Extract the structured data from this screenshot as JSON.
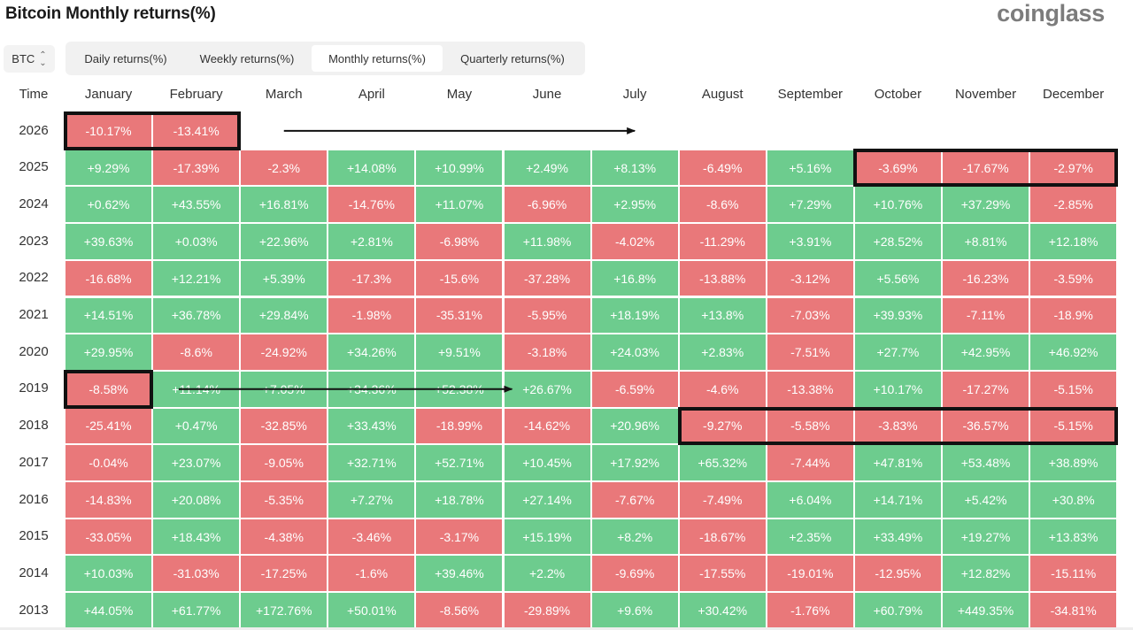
{
  "page": {
    "title": "Bitcoin Monthly returns(%)",
    "brand": "coinglass"
  },
  "coin_select": {
    "value": "BTC"
  },
  "tabs": [
    {
      "label": "Daily returns(%)",
      "active": false
    },
    {
      "label": "Weekly returns(%)",
      "active": false
    },
    {
      "label": "Monthly returns(%)",
      "active": true
    },
    {
      "label": "Quarterly returns(%)",
      "active": false
    }
  ],
  "colors": {
    "positive": "#6dcc8e",
    "negative": "#e9787a"
  },
  "chart_data": {
    "type": "heatmap",
    "title": "Bitcoin Monthly returns(%)",
    "row_header": "Time",
    "columns": [
      "January",
      "February",
      "March",
      "April",
      "May",
      "June",
      "July",
      "August",
      "September",
      "October",
      "November",
      "December"
    ],
    "rows": [
      {
        "year": "2026",
        "values": [
          "-10.17%",
          "-13.41%",
          null,
          null,
          null,
          null,
          null,
          null,
          null,
          null,
          null,
          null
        ]
      },
      {
        "year": "2025",
        "values": [
          "+9.29%",
          "-17.39%",
          "-2.3%",
          "+14.08%",
          "+10.99%",
          "+2.49%",
          "+8.13%",
          "-6.49%",
          "+5.16%",
          "-3.69%",
          "-17.67%",
          "-2.97%"
        ]
      },
      {
        "year": "2024",
        "values": [
          "+0.62%",
          "+43.55%",
          "+16.81%",
          "-14.76%",
          "+11.07%",
          "-6.96%",
          "+2.95%",
          "-8.6%",
          "+7.29%",
          "+10.76%",
          "+37.29%",
          "-2.85%"
        ]
      },
      {
        "year": "2023",
        "values": [
          "+39.63%",
          "+0.03%",
          "+22.96%",
          "+2.81%",
          "-6.98%",
          "+11.98%",
          "-4.02%",
          "-11.29%",
          "+3.91%",
          "+28.52%",
          "+8.81%",
          "+12.18%"
        ]
      },
      {
        "year": "2022",
        "values": [
          "-16.68%",
          "+12.21%",
          "+5.39%",
          "-17.3%",
          "-15.6%",
          "-37.28%",
          "+16.8%",
          "-13.88%",
          "-3.12%",
          "+5.56%",
          "-16.23%",
          "-3.59%"
        ]
      },
      {
        "year": "2021",
        "values": [
          "+14.51%",
          "+36.78%",
          "+29.84%",
          "-1.98%",
          "-35.31%",
          "-5.95%",
          "+18.19%",
          "+13.8%",
          "-7.03%",
          "+39.93%",
          "-7.11%",
          "-18.9%"
        ]
      },
      {
        "year": "2020",
        "values": [
          "+29.95%",
          "-8.6%",
          "-24.92%",
          "+34.26%",
          "+9.51%",
          "-3.18%",
          "+24.03%",
          "+2.83%",
          "-7.51%",
          "+27.7%",
          "+42.95%",
          "+46.92%"
        ]
      },
      {
        "year": "2019",
        "values": [
          "-8.58%",
          "+11.14%",
          "+7.05%",
          "+34.36%",
          "+52.38%",
          "+26.67%",
          "-6.59%",
          "-4.6%",
          "-13.38%",
          "+10.17%",
          "-17.27%",
          "-5.15%"
        ]
      },
      {
        "year": "2018",
        "values": [
          "-25.41%",
          "+0.47%",
          "-32.85%",
          "+33.43%",
          "-18.99%",
          "-14.62%",
          "+20.96%",
          "-9.27%",
          "-5.58%",
          "-3.83%",
          "-36.57%",
          "-5.15%"
        ]
      },
      {
        "year": "2017",
        "values": [
          "-0.04%",
          "+23.07%",
          "-9.05%",
          "+32.71%",
          "+52.71%",
          "+10.45%",
          "+17.92%",
          "+65.32%",
          "-7.44%",
          "+47.81%",
          "+53.48%",
          "+38.89%"
        ]
      },
      {
        "year": "2016",
        "values": [
          "-14.83%",
          "+20.08%",
          "-5.35%",
          "+7.27%",
          "+18.78%",
          "+27.14%",
          "-7.67%",
          "-7.49%",
          "+6.04%",
          "+14.71%",
          "+5.42%",
          "+30.8%"
        ]
      },
      {
        "year": "2015",
        "values": [
          "-33.05%",
          "+18.43%",
          "-4.38%",
          "-3.46%",
          "-3.17%",
          "+15.19%",
          "+8.2%",
          "-18.67%",
          "+2.35%",
          "+33.49%",
          "+19.27%",
          "+13.83%"
        ]
      },
      {
        "year": "2014",
        "values": [
          "+10.03%",
          "-31.03%",
          "-17.25%",
          "-1.6%",
          "+39.46%",
          "+2.2%",
          "-9.69%",
          "-17.55%",
          "-19.01%",
          "-12.95%",
          "+12.82%",
          "-15.11%"
        ]
      },
      {
        "year": "2013",
        "values": [
          "+44.05%",
          "+61.77%",
          "+172.76%",
          "+50.01%",
          "-8.56%",
          "-29.89%",
          "+9.6%",
          "+30.42%",
          "-1.76%",
          "+60.79%",
          "+449.35%",
          "-34.81%"
        ]
      }
    ],
    "highlights": [
      {
        "year": "2026",
        "from_month": 0,
        "to_month": 1
      },
      {
        "year": "2025",
        "from_month": 9,
        "to_month": 11
      },
      {
        "year": "2019",
        "from_month": 0,
        "to_month": 0
      },
      {
        "year": "2018",
        "from_month": 7,
        "to_month": 11
      }
    ],
    "arrows": [
      {
        "year": "2026",
        "from_month": 2.5,
        "to_month": 6.5
      },
      {
        "year": "2019",
        "from_month": 1.3,
        "to_month": 5.1
      }
    ]
  }
}
